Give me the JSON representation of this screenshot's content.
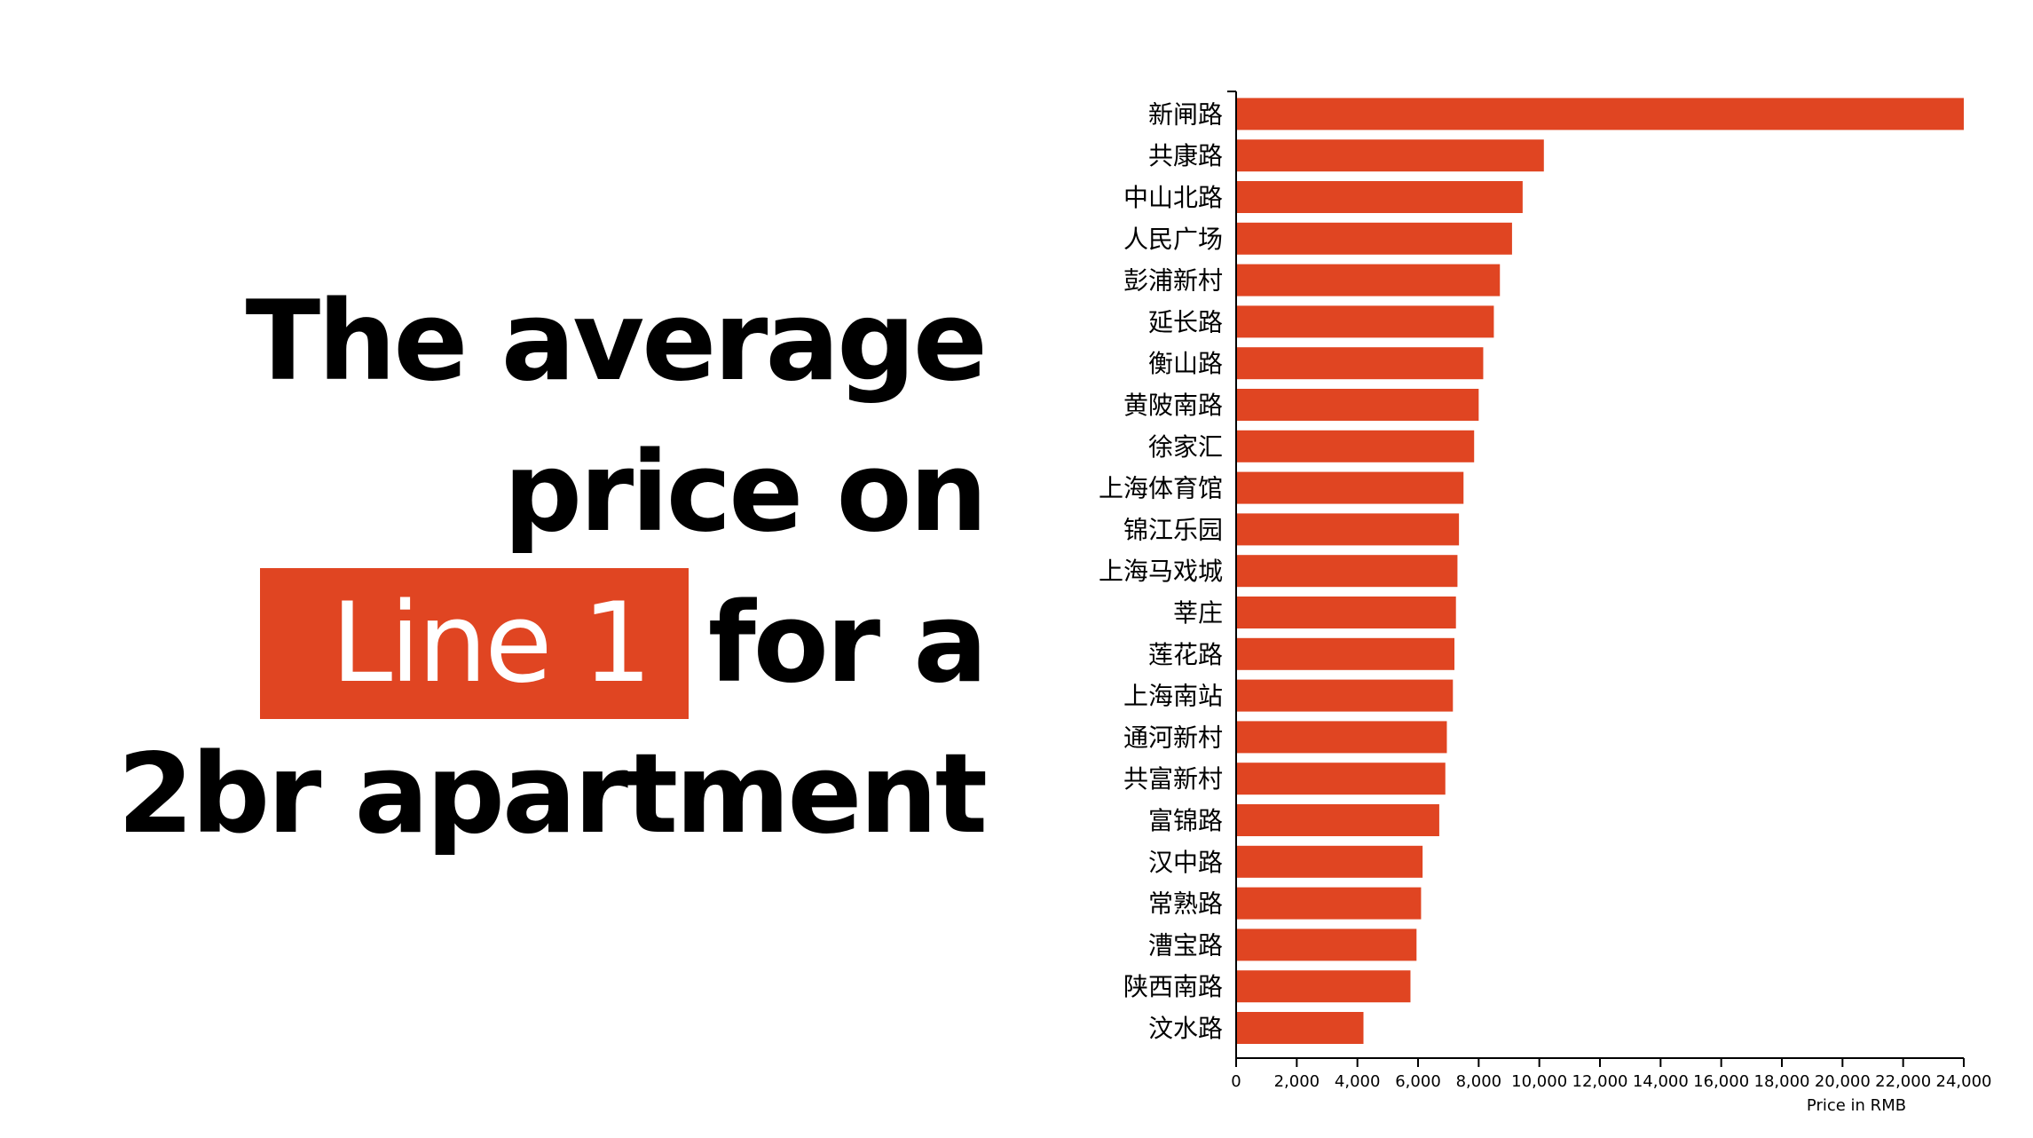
{
  "headline": {
    "part1": "The average",
    "part2": "price on",
    "highlight": "Line 1",
    "part3": "for a",
    "part4": "2br apartment"
  },
  "colors": {
    "bar": "#e04522",
    "highlight_bg": "#e04522",
    "text": "#000000"
  },
  "chart_data": {
    "type": "bar",
    "orientation": "horizontal",
    "categories": [
      "新闸路",
      "共康路",
      "中山北路",
      "人民广场",
      "彭浦新村",
      "延长路",
      "衡山路",
      "黄陂南路",
      "徐家汇",
      "上海体育馆",
      "锦江乐园",
      "上海马戏城",
      "莘庄",
      "莲花路",
      "上海南站",
      "通河新村",
      "共富新村",
      "富锦路",
      "汉中路",
      "常熟路",
      "漕宝路",
      "陕西南路",
      "汶水路"
    ],
    "values": [
      24000,
      10150,
      9450,
      9100,
      8700,
      8500,
      8150,
      8000,
      7850,
      7500,
      7350,
      7300,
      7250,
      7200,
      7150,
      6950,
      6900,
      6700,
      6150,
      6100,
      5950,
      5750,
      4200
    ],
    "xlabel": "Price in RMB",
    "ylabel": "",
    "xlim": [
      0,
      24000
    ],
    "xticks": [
      "0",
      "2,000",
      "4,000",
      "6,000",
      "8,000",
      "10,000",
      "12,000",
      "14,000",
      "16,000",
      "18,000",
      "20,000",
      "22,000",
      "24,000"
    ],
    "grid": false
  }
}
